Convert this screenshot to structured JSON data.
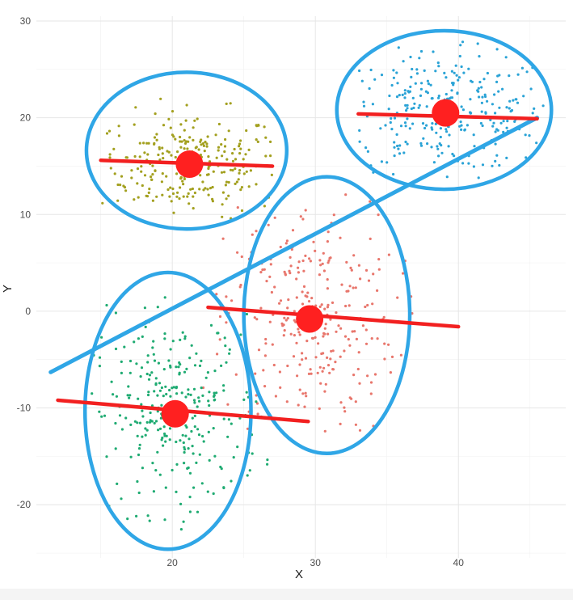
{
  "chart_data": {
    "type": "scatter",
    "title": "",
    "xlabel": "X",
    "ylabel": "Y",
    "xlim": [
      10.5,
      47.5
    ],
    "ylim": [
      -25.5,
      30.5
    ],
    "x_ticks": [
      20,
      30,
      40
    ],
    "y_ticks": [
      -20,
      -10,
      0,
      10,
      20,
      30
    ],
    "grid": true,
    "legend": "none",
    "colors": {
      "olive": "#a3a01f",
      "blue": "#2aa3d6",
      "salmon": "#e8766c",
      "green": "#1fab72",
      "ellipse": "#2fa6e6",
      "centroid": "#ff2020",
      "fit_line": "#f22020",
      "overall_line": "#2fa6e6"
    },
    "clusters": [
      {
        "color_key": "olive",
        "centroid": [
          21.2,
          15.2
        ],
        "spread": [
          3.2,
          2.7
        ],
        "point_count": 260,
        "x_range": [
          15,
          27
        ],
        "y_range": [
          9.5,
          22.5
        ],
        "ellipse": {
          "cx": 21.0,
          "cy": 16.6,
          "rx": 7.0,
          "ry": 8.1
        },
        "fit_line": [
          [
            15.0,
            15.6
          ],
          [
            27.0,
            15.0
          ]
        ]
      },
      {
        "color_key": "blue",
        "centroid": [
          39.1,
          20.5
        ],
        "spread": [
          3.8,
          3.0
        ],
        "point_count": 280,
        "x_range": [
          33,
          46
        ],
        "y_range": [
          13.5,
          28
        ],
        "ellipse": {
          "cx": 39.0,
          "cy": 20.8,
          "rx": 7.5,
          "ry": 8.2
        },
        "fit_line": [
          [
            33.0,
            20.4
          ],
          [
            45.5,
            19.9
          ]
        ]
      },
      {
        "color_key": "salmon",
        "centroid": [
          29.6,
          -0.8
        ],
        "spread": [
          3.0,
          6.0
        ],
        "point_count": 280,
        "x_range": [
          22,
          40
        ],
        "y_range": [
          -13.5,
          12.5
        ],
        "ellipse": {
          "cx": 30.8,
          "cy": -0.4,
          "rx": 5.8,
          "ry": 14.3
        },
        "fit_line": [
          [
            22.5,
            0.4
          ],
          [
            40.0,
            -1.6
          ]
        ]
      },
      {
        "color_key": "green",
        "centroid": [
          20.2,
          -10.6
        ],
        "spread": [
          3.0,
          5.0
        ],
        "point_count": 280,
        "x_range": [
          14,
          27
        ],
        "y_range": [
          -23.5,
          3
        ],
        "ellipse": {
          "cx": 19.7,
          "cy": -10.3,
          "rx": 5.8,
          "ry": 14.3
        },
        "fit_line": [
          [
            12.0,
            -9.2
          ],
          [
            29.5,
            -11.4
          ]
        ]
      }
    ],
    "overall_fit_line": [
      [
        11.5,
        -6.3
      ],
      [
        45.5,
        20.0
      ]
    ]
  }
}
